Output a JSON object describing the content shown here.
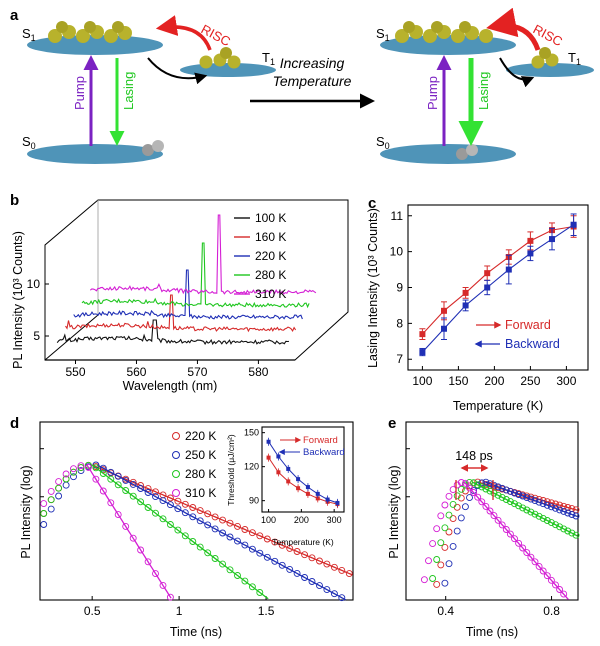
{
  "colors": {
    "red": "#d62a2a",
    "blue": "#1f2fb5",
    "green": "#1fc61f",
    "magenta": "#d41ed4",
    "black": "#111111",
    "level": "#4f94b8",
    "molecule": "#b8b22c",
    "pump": "#7b22c2",
    "lasing": "#33e233",
    "risc": "#e32222"
  },
  "panel_a": {
    "panel_label": "a",
    "caption_line1": "Increasing",
    "caption_line2": "Temperature",
    "s1": "S",
    "s1_sub": "1",
    "t1": "T",
    "t1_sub": "1",
    "s0": "S",
    "s0_sub": "0",
    "pump": "Pump",
    "lasing": "Lasing",
    "risc": "RISC"
  },
  "chart_data": [
    {
      "panel": "b",
      "type": "line",
      "chart_style": "3d-waterfall",
      "xlabel": "Wavelength (nm)",
      "ylabel": "PL Intensity (10³ Counts)",
      "ylabel_sup": "3",
      "xticks": [
        550,
        560,
        570,
        580
      ],
      "yticks": [
        5,
        10
      ],
      "xlim": [
        545,
        586
      ],
      "series": [
        {
          "name": "100 K",
          "color": "#111111",
          "peak_nm": 563
        },
        {
          "name": "160 K",
          "color": "#d62a2a",
          "peak_nm": 565
        },
        {
          "name": "220 K",
          "color": "#1f2fb5",
          "peak_nm": 567
        },
        {
          "name": "280 K",
          "color": "#1fc61f",
          "peak_nm": 569
        },
        {
          "name": "310 K",
          "color": "#d41ed4",
          "peak_nm": 571
        }
      ]
    },
    {
      "panel": "c",
      "type": "line",
      "xlabel": "Temperature (K)",
      "ylabel": "Lasing Intensity (10³ Counts)",
      "ylabel_sup": "3",
      "xlim": [
        80,
        330
      ],
      "ylim": [
        6.7,
        11.3
      ],
      "xticks": [
        100,
        150,
        200,
        250,
        300
      ],
      "yticks": [
        7,
        8,
        9,
        10,
        11
      ],
      "series": [
        {
          "name": "Forward",
          "color": "#d62a2a",
          "x": [
            100,
            130,
            160,
            190,
            220,
            250,
            280,
            310
          ],
          "y": [
            7.7,
            8.35,
            8.85,
            9.4,
            9.85,
            10.3,
            10.6,
            10.7
          ],
          "err": [
            0.15,
            0.25,
            0.15,
            0.2,
            0.2,
            0.25,
            0.2,
            0.3
          ]
        },
        {
          "name": "Backward",
          "color": "#1f2fb5",
          "x": [
            100,
            130,
            160,
            190,
            220,
            250,
            280,
            310
          ],
          "y": [
            7.2,
            7.85,
            8.5,
            9.0,
            9.5,
            9.95,
            10.35,
            10.75
          ],
          "err": [
            0.1,
            0.3,
            0.15,
            0.2,
            0.4,
            0.2,
            0.3,
            0.3
          ]
        }
      ]
    },
    {
      "panel": "d",
      "type": "line",
      "xlabel": "Time (ns)",
      "ylabel": "PL Intensity (log)",
      "xlim": [
        0.2,
        2.0
      ],
      "xticks": [
        0.5,
        1,
        1.5
      ],
      "xtick_labels": [
        "0.5",
        "1",
        "1.5"
      ],
      "series": [
        {
          "name": "220 K",
          "color": "#d62a2a",
          "peak": 0.5,
          "fall": 0.45
        },
        {
          "name": "250 K",
          "color": "#1f2fb5",
          "peak": 0.53,
          "fall": 0.35
        },
        {
          "name": "280 K",
          "color": "#1fc61f",
          "peak": 0.5,
          "fall": 0.25
        },
        {
          "name": "310 K",
          "color": "#d41ed4",
          "peak": 0.47,
          "fall": 0.12
        }
      ],
      "inset": {
        "xlabel": "Temperature (K)",
        "ylabel": "Threshold (μJ/cm²)",
        "xlim": [
          80,
          330
        ],
        "ylim": [
          80,
          155
        ],
        "xticks": [
          100,
          200,
          300
        ],
        "yticks": [
          90,
          120,
          150
        ],
        "series": [
          {
            "name": "Forward",
            "color": "#d62a2a",
            "x": [
              100,
              130,
              160,
              190,
              220,
              250,
              280,
              310
            ],
            "y": [
              128,
              115,
              107,
              101,
              96,
              92,
              89,
              87
            ]
          },
          {
            "name": "Backward",
            "color": "#1f2fb5",
            "x": [
              100,
              130,
              160,
              190,
              220,
              250,
              280,
              310
            ],
            "y": [
              142,
              129,
              118,
              109,
              102,
              96,
              91,
              88
            ]
          }
        ]
      }
    },
    {
      "panel": "e",
      "type": "line",
      "xlabel": "Time (ns)",
      "ylabel": "PL Intensity (log)",
      "xlim": [
        0.25,
        0.9
      ],
      "xticks": [
        0.4,
        0.8
      ],
      "xtick_labels": [
        "0.4",
        "0.8"
      ],
      "annotation": "148 ps",
      "series": [
        {
          "name": "220 K",
          "color": "#d62a2a",
          "peak": 0.52,
          "fall": 0.4
        },
        {
          "name": "250 K",
          "color": "#1f2fb5",
          "peak": 0.55,
          "fall": 0.3
        },
        {
          "name": "280 K",
          "color": "#1fc61f",
          "peak": 0.5,
          "fall": 0.22
        },
        {
          "name": "310 K",
          "color": "#d41ed4",
          "peak": 0.47,
          "fall": 0.1
        }
      ]
    }
  ],
  "panels": {
    "b": "b",
    "c": "c",
    "d": "d",
    "e": "e"
  }
}
